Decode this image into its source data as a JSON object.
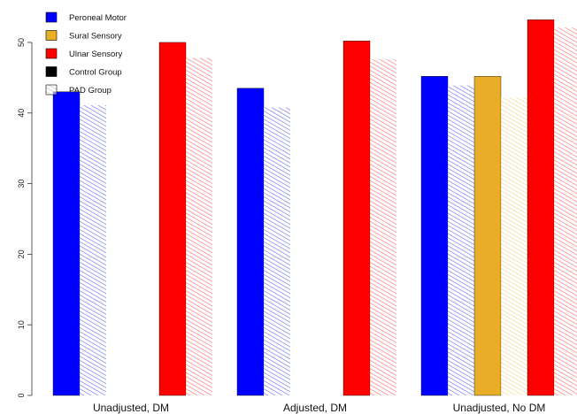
{
  "chart_data": {
    "type": "bar",
    "title": "",
    "xlabel": "",
    "ylabel": "",
    "ylim": [
      0,
      53.5
    ],
    "yticks": [
      0,
      10,
      20,
      30,
      40,
      50
    ],
    "categories": [
      "Unadjusted, DM",
      "Adjusted, DM",
      "Unadjusted, No DM"
    ],
    "series": [
      {
        "name": "Peroneal Motor",
        "group": "Control Group",
        "color": "#0000ff",
        "pattern": "solid",
        "values": [
          43.0,
          43.5,
          45.2
        ]
      },
      {
        "name": "Peroneal Motor",
        "group": "PAD Group",
        "color": "#0000ff",
        "pattern": "hatched",
        "values": [
          41.1,
          40.8,
          43.9
        ]
      },
      {
        "name": "Sural Sensory",
        "group": "Control Group",
        "color": "#e8ae27",
        "pattern": "solid",
        "values": [
          null,
          null,
          45.2
        ]
      },
      {
        "name": "Sural Sensory",
        "group": "PAD Group",
        "color": "#e8ae27",
        "pattern": "hatched",
        "values": [
          null,
          null,
          42.2
        ]
      },
      {
        "name": "Ulnar Sensory",
        "group": "Control Group",
        "color": "#ff0000",
        "pattern": "solid",
        "values": [
          50.0,
          50.2,
          53.2
        ]
      },
      {
        "name": "Ulnar Sensory",
        "group": "PAD Group",
        "color": "#ff0000",
        "pattern": "hatched",
        "values": [
          47.8,
          47.6,
          52.1
        ]
      }
    ],
    "legend": {
      "placement": "top-left",
      "entries": [
        {
          "label": "Peroneal Motor",
          "color": "#0000ff",
          "pattern": "solid"
        },
        {
          "label": "Sural Sensory",
          "color": "#e8ae27",
          "pattern": "solid"
        },
        {
          "label": "Ulnar Sensory",
          "color": "#ff0000",
          "pattern": "solid"
        },
        {
          "label": "Control Group",
          "color": "#000000",
          "pattern": "solid"
        },
        {
          "label": "PAD Group",
          "color": "#888888",
          "pattern": "hatched"
        }
      ]
    },
    "grid": false
  }
}
